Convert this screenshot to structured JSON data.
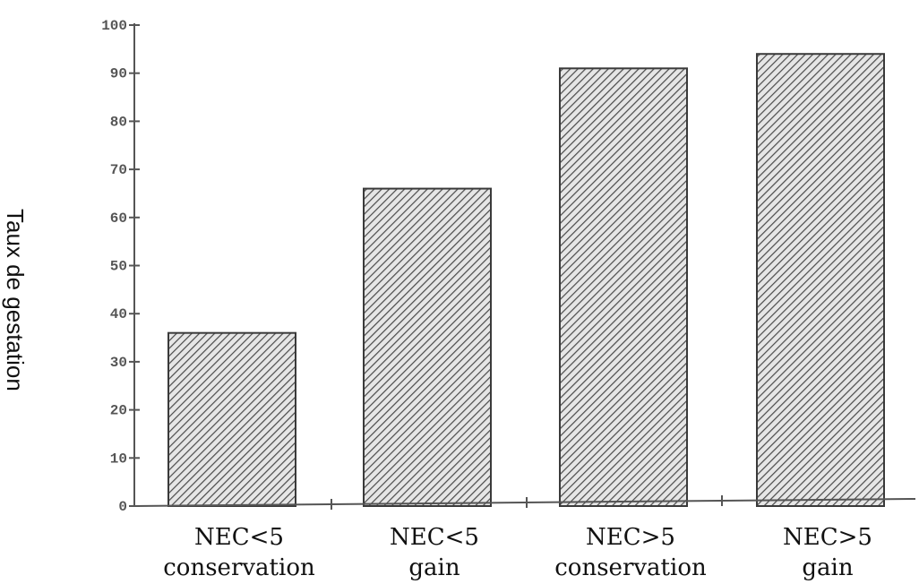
{
  "chart_data": {
    "type": "bar",
    "ylabel": "Taux de gestation",
    "xlabel": "",
    "title": "",
    "categories": [
      [
        "NEC<5",
        "conservation"
      ],
      [
        "NEC<5",
        "gain"
      ],
      [
        "NEC>5",
        "conservation"
      ],
      [
        "NEC>5",
        "gain"
      ]
    ],
    "values": [
      36,
      66,
      91,
      94
    ],
    "ylim": [
      0,
      100
    ],
    "yticks": [
      0,
      10,
      20,
      30,
      40,
      50,
      60,
      70,
      80,
      90,
      100
    ],
    "ytick_labels": [
      "0",
      "10",
      "20",
      "30",
      "40",
      "50",
      "60",
      "70",
      "80",
      "90",
      "100"
    ],
    "grid": false,
    "legend": "none",
    "bar_fill": "hatched-gray",
    "colors": {
      "bar_stroke": "#3a3a3a",
      "hatch_line": "#4a4a4a",
      "bar_bg": "#e6e6e6",
      "axis": "#555555"
    }
  }
}
